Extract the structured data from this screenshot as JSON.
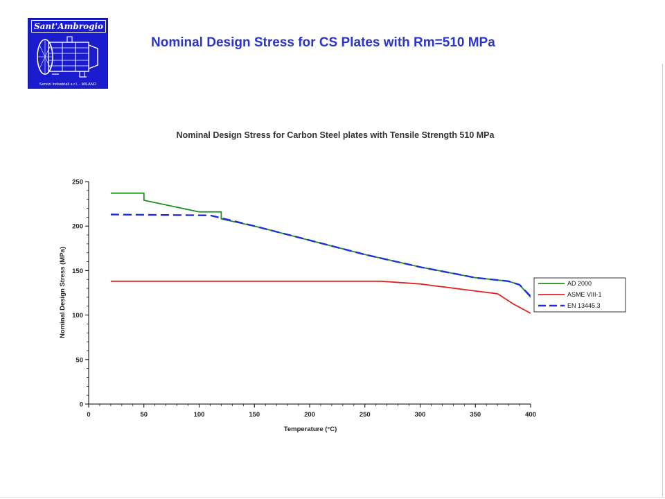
{
  "header": {
    "title": "Nominal Design Stress for CS Plates with Rm=510 MPa",
    "logo": {
      "name": "Sant'Ambrogio",
      "subtitle": "Servizi Industriali s.r.l. - MILANO",
      "bg_color": "#1c1ccf"
    }
  },
  "chart_data": {
    "type": "line",
    "title": "Nominal Design Stress for Carbon Steel plates with Tensile Strength 510 MPa",
    "xlabel": "Temperature (°C)",
    "ylabel": "Nominal Design Stress (MPa)",
    "xlim": [
      0,
      400
    ],
    "ylim": [
      0,
      250
    ],
    "xticks": [
      0,
      50,
      100,
      150,
      200,
      250,
      300,
      350,
      400
    ],
    "yticks": [
      0,
      50,
      100,
      150,
      200,
      250
    ],
    "grid": false,
    "legend_position": "right",
    "series": [
      {
        "name": "AD 2000",
        "color": "#1e8f1e",
        "style": "solid",
        "x": [
          20,
          50,
          50,
          100,
          120,
          120,
          150,
          200,
          250,
          300,
          350,
          380,
          390,
          400
        ],
        "y": [
          237,
          237,
          229,
          216,
          216,
          208,
          200,
          184,
          168,
          154,
          142,
          138,
          134,
          120
        ]
      },
      {
        "name": "ASME VIII-1",
        "color": "#e52222",
        "style": "solid",
        "x": [
          20,
          100,
          200,
          265,
          300,
          350,
          370,
          385,
          400
        ],
        "y": [
          138,
          138,
          138,
          138,
          135,
          127,
          124,
          112,
          102
        ]
      },
      {
        "name": "EN 13445.3",
        "color": "#1e2fd8",
        "style": "dashed",
        "x": [
          20,
          110,
          150,
          200,
          250,
          300,
          350,
          380,
          390,
          400
        ],
        "y": [
          213,
          212,
          200,
          184,
          168,
          154,
          142,
          138,
          134,
          121
        ]
      }
    ]
  }
}
